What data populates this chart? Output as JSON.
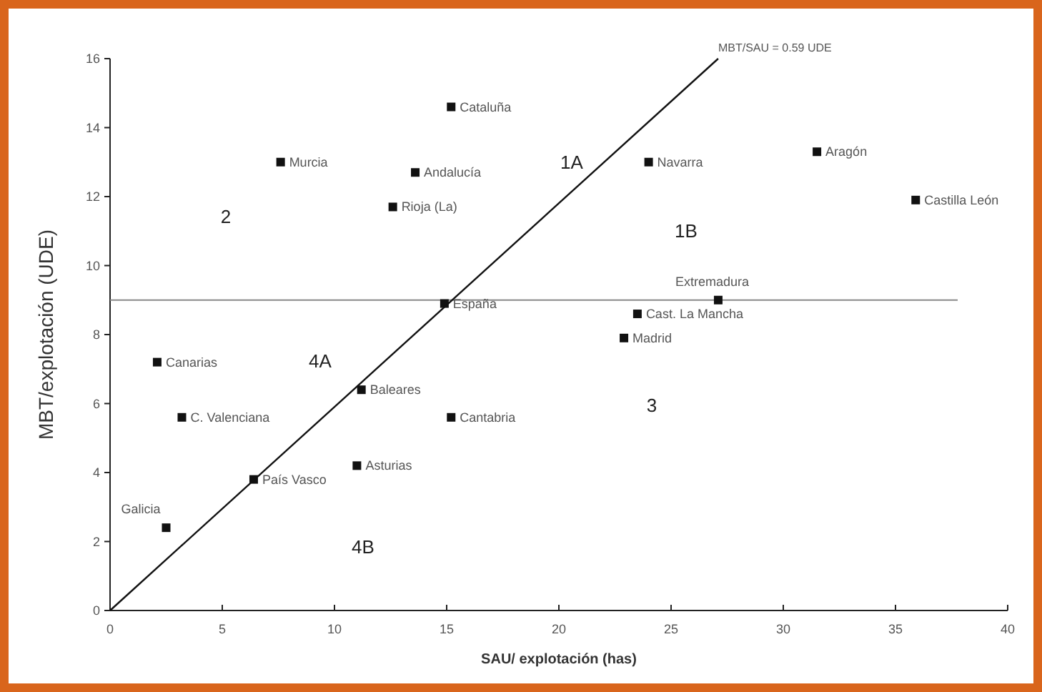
{
  "chart_data": {
    "type": "scatter",
    "xlabel": "SAU/ explotación (has)",
    "ylabel": "MBT/explotación (UDE)",
    "xlim": [
      0,
      40
    ],
    "xticks": [
      0,
      5,
      10,
      15,
      20,
      25,
      30,
      35,
      40
    ],
    "ylim": [
      0,
      16
    ],
    "yticks": [
      0,
      2,
      4,
      6,
      8,
      10,
      12,
      14,
      16
    ],
    "grid": false,
    "series": [
      {
        "marker": "square",
        "color": "#111111",
        "x": [
          15.2,
          7.6,
          13.6,
          12.6,
          24.0,
          31.5,
          35.9,
          27.1,
          23.5,
          22.9,
          14.9,
          2.1,
          3.2,
          11.2,
          15.2,
          11.0,
          6.4,
          2.5
        ],
        "values": [
          14.6,
          13.0,
          12.7,
          11.7,
          13.0,
          13.3,
          11.9,
          9.0,
          8.6,
          7.9,
          8.9,
          7.2,
          5.6,
          6.4,
          5.6,
          4.2,
          3.8,
          2.4
        ]
      },
      {
        "type": "line",
        "color": "#111111",
        "x": [
          0,
          27.1
        ],
        "values": [
          0,
          16
        ]
      }
    ],
    "ref_lines": [
      {
        "axis": "y",
        "value": 9,
        "color": "#888888"
      }
    ],
    "annotations": [
      {
        "text": "Cataluña",
        "x": 15.2,
        "y": 14.6
      },
      {
        "text": "Murcia",
        "x": 7.6,
        "y": 13.0
      },
      {
        "text": "Andalucía",
        "x": 13.6,
        "y": 12.7
      },
      {
        "text": "Rioja (La)",
        "x": 12.6,
        "y": 11.7
      },
      {
        "text": "Navarra",
        "x": 24.0,
        "y": 13.0
      },
      {
        "text": "Aragón",
        "x": 31.5,
        "y": 13.3
      },
      {
        "text": "Castilla León",
        "x": 35.9,
        "y": 11.9
      },
      {
        "text": "Extremadura",
        "x": 27.1,
        "y": 9.0
      },
      {
        "text": "Cast. La Mancha",
        "x": 23.5,
        "y": 8.6
      },
      {
        "text": "Madrid",
        "x": 22.9,
        "y": 7.9
      },
      {
        "text": "España",
        "x": 14.9,
        "y": 8.9
      },
      {
        "text": "Canarias",
        "x": 2.1,
        "y": 7.2
      },
      {
        "text": "C. Valenciana",
        "x": 3.2,
        "y": 5.6
      },
      {
        "text": "Baleares",
        "x": 11.2,
        "y": 6.4
      },
      {
        "text": "Cantabria",
        "x": 15.2,
        "y": 5.6
      },
      {
        "text": "Asturias",
        "x": 11.0,
        "y": 4.2
      },
      {
        "text": "País Vasco",
        "x": 6.4,
        "y": 3.8
      },
      {
        "text": "Galicia",
        "x": 2.5,
        "y": 2.4
      },
      {
        "text": "MBT/SAU = 0.59 UDE",
        "x": 27.1,
        "y": 16
      },
      "1A",
      "1B",
      "2",
      "3",
      "4A",
      "4B"
    ]
  }
}
